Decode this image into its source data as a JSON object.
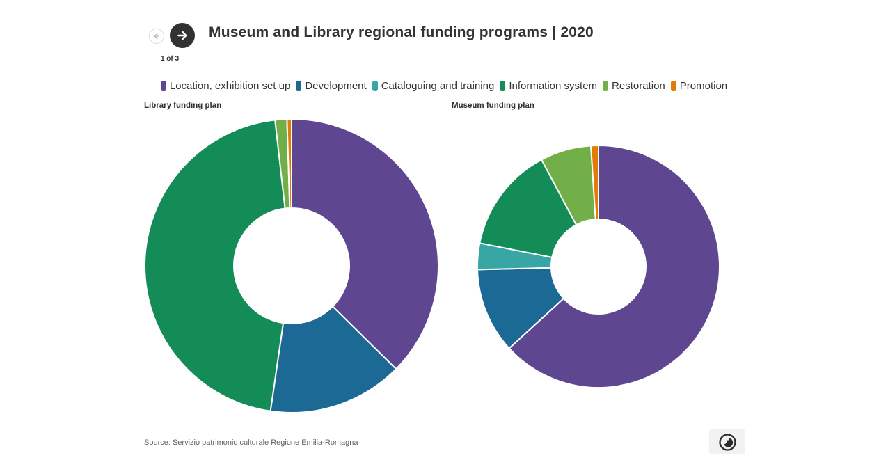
{
  "header": {
    "title": "Museum and Library regional funding programs | 2020",
    "pagination": "1 of 3",
    "prev_icon": "arrow-left",
    "next_icon": "arrow-right"
  },
  "legend": {
    "items": [
      {
        "label": "Location, exhibition set up",
        "color": "#5F4690"
      },
      {
        "label": "Development",
        "color": "#1D6996"
      },
      {
        "label": "Cataloguing and training",
        "color": "#38A6A5"
      },
      {
        "label": "Information system",
        "color": "#148C58"
      },
      {
        "label": "Restoration",
        "color": "#73AF48"
      },
      {
        "label": "Promotion",
        "color": "#E17C05"
      }
    ]
  },
  "chart_data": [
    {
      "type": "pie",
      "subtype": "donut",
      "title": "Library funding plan",
      "categories": [
        "Location, exhibition set up",
        "Development",
        "Cataloguing and training",
        "Information system",
        "Restoration",
        "Promotion"
      ],
      "values": [
        37.4,
        14.9,
        0,
        45.9,
        1.3,
        0.5
      ],
      "unit": "percent-of-total",
      "colors": [
        "#5F4690",
        "#1D6996",
        "#38A6A5",
        "#148C58",
        "#73AF48",
        "#E17C05"
      ],
      "start_angle_deg": 0,
      "direction": "clockwise",
      "legend_position": "top"
    },
    {
      "type": "pie",
      "subtype": "donut",
      "title": "Museum funding plan",
      "categories": [
        "Location, exhibition set up",
        "Development",
        "Cataloguing and training",
        "Information system",
        "Restoration",
        "Promotion"
      ],
      "values": [
        63.2,
        11.4,
        3.5,
        14.1,
        6.8,
        1.0
      ],
      "unit": "percent-of-total",
      "colors": [
        "#5F4690",
        "#1D6996",
        "#38A6A5",
        "#148C58",
        "#73AF48",
        "#E17C05"
      ],
      "start_angle_deg": 0,
      "direction": "clockwise",
      "legend_position": "top"
    }
  ],
  "footer": {
    "source": "Source: Servizio patrimonio culturale Regione Emilia-Romagna",
    "logo_icon": "flourish-logo"
  }
}
